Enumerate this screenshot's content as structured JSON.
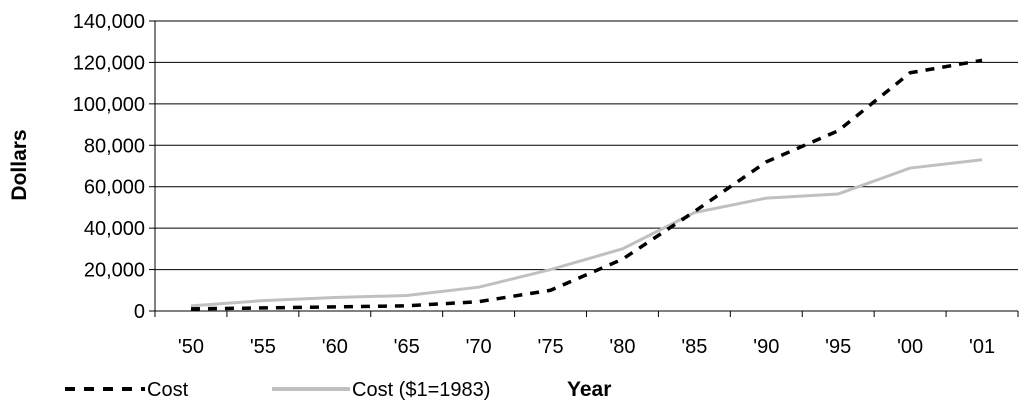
{
  "chart_data": {
    "type": "line",
    "title": "",
    "xlabel": "Year",
    "ylabel": "Dollars",
    "categories": [
      "'50",
      "'55",
      "'60",
      "'65",
      "'70",
      "'75",
      "'80",
      "'85",
      "'90",
      "'95",
      "'00",
      "'01"
    ],
    "ylim": [
      0,
      140000
    ],
    "yticks": [
      "0",
      "20,000",
      "40,000",
      "60,000",
      "80,000",
      "100,000",
      "120,000",
      "140,000"
    ],
    "grid": true,
    "legend_position": "bottom-left",
    "series": [
      {
        "name": "Cost",
        "style": "dashed",
        "color": "#000000",
        "values": [
          1000,
          1500,
          2000,
          2500,
          4500,
          10000,
          25000,
          48000,
          72000,
          87000,
          115000,
          121000
        ]
      },
      {
        "name": "Cost ($1=1983)",
        "style": "solid",
        "color": "#c0c0c0",
        "values": [
          2500,
          5000,
          6500,
          7500,
          11500,
          20000,
          30000,
          47500,
          54500,
          56500,
          69000,
          73000
        ]
      }
    ]
  }
}
